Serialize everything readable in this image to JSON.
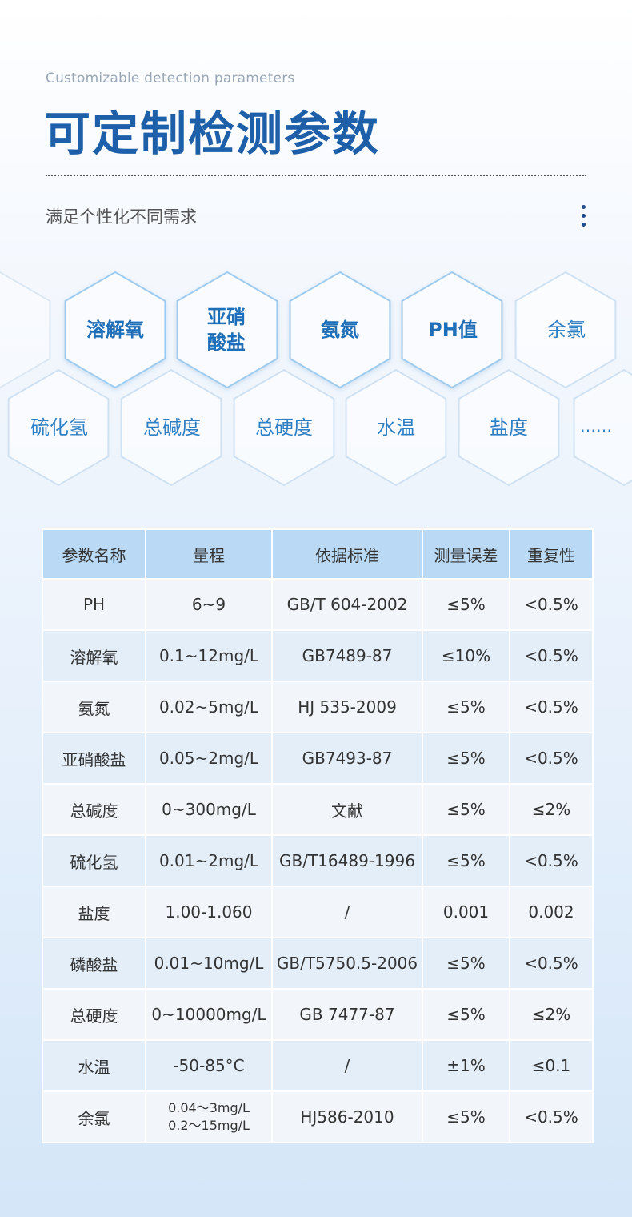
{
  "header": {
    "subtitle_en": "Customizable detection parameters",
    "title": "可定制检测参数",
    "tagline": "满足个性化不同需求"
  },
  "hexagons": {
    "row1": [
      "溶解氧",
      "亚硝酸盐",
      "氨氮",
      "PH值",
      "余氯"
    ],
    "row2": [
      "硫化氢",
      "总碱度",
      "总硬度",
      "水温",
      "盐度",
      "……"
    ]
  },
  "table": {
    "headers": [
      "参数名称",
      "量程",
      "依据标准",
      "测量误差",
      "重复性"
    ],
    "rows": [
      [
        "PH",
        "6~9",
        "GB/T 604-2002",
        "≤5%",
        "<0.5%"
      ],
      [
        "溶解氧",
        "0.1~12mg/L",
        "GB7489-87",
        "≤10%",
        "<0.5%"
      ],
      [
        "氨氮",
        "0.02~5mg/L",
        "HJ 535-2009",
        "≤5%",
        "<0.5%"
      ],
      [
        "亚硝酸盐",
        "0.05~2mg/L",
        "GB7493-87",
        "≤5%",
        "<0.5%"
      ],
      [
        "总碱度",
        "0~300mg/L",
        "文献",
        "≤5%",
        "≤2%"
      ],
      [
        "硫化氢",
        "0.01~2mg/L",
        "GB/T16489-1996",
        "≤5%",
        "<0.5%"
      ],
      [
        "盐度",
        "1.00-1.060",
        "/",
        "0.001",
        "0.002"
      ],
      [
        "磷酸盐",
        "0.01~10mg/L",
        "GB/T5750.5-2006",
        "≤5%",
        "<0.5%"
      ],
      [
        "总硬度",
        "0~10000mg/L",
        "GB 7477-87",
        "≤5%",
        "≤2%"
      ],
      [
        "水温",
        "-50-85°C",
        "/",
        "±1%",
        "≤0.1"
      ],
      [
        "余氯",
        "0.04～3mg/L 0.2～15mg/L",
        "HJ586-2010",
        "≤5%",
        "<0.5%"
      ]
    ]
  },
  "colors": {
    "title": "#1d5fa8",
    "header_bg": "#b9d9f5",
    "hex_text": "#2e7fc4"
  }
}
